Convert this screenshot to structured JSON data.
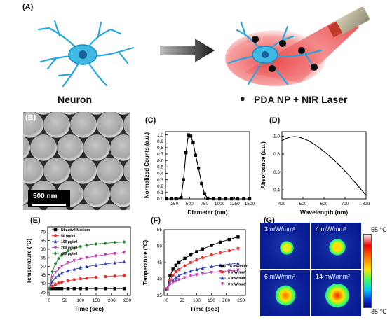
{
  "panels": {
    "A": {
      "label": "(A)",
      "left_caption": "Neuron",
      "right_caption": "PDA NP + NIR Laser",
      "legend_dot": "●"
    },
    "B": {
      "label": "(B)",
      "scale_bar": "500 nm"
    },
    "C": {
      "label": "(C)"
    },
    "D": {
      "label": "(D)"
    },
    "E": {
      "label": "(E)"
    },
    "F": {
      "label": "(F)"
    },
    "G": {
      "label": "(G)",
      "cells": [
        "3 mW/mm²",
        "4 mW/mm²",
        "6 mW/mm²",
        "14 mW/mm²"
      ],
      "colorbar_max": "55 °C",
      "colorbar_min": "35 °C",
      "hot_levels": [
        0.35,
        0.5,
        0.72,
        0.92
      ]
    }
  },
  "chart_data": [
    {
      "id": "C",
      "type": "line",
      "xlabel": "Diameter (nm)",
      "ylabel": "Normalized Counts (a.u.)",
      "xlim": [
        100,
        1500
      ],
      "ylim": [
        0,
        1.05
      ],
      "xticks": [
        "250",
        "500",
        "750",
        "1000",
        "1250",
        "1500"
      ],
      "yticks": [
        "0.0",
        "0.1",
        "0.2",
        "0.3",
        "0.4",
        "0.5",
        "0.6",
        "0.7",
        "0.8",
        "0.9",
        "1.0"
      ],
      "x": [
        120,
        200,
        280,
        360,
        400,
        440,
        480,
        520,
        560,
        600,
        650,
        700,
        750,
        800,
        900,
        1000,
        1100,
        1200,
        1300,
        1400,
        1500
      ],
      "y": [
        0,
        0,
        0,
        0.02,
        0.3,
        0.72,
        1.0,
        0.98,
        0.88,
        0.68,
        0.48,
        0.24,
        0.08,
        0.01,
        0,
        0,
        0,
        0,
        0,
        0,
        0
      ]
    },
    {
      "id": "D",
      "type": "line",
      "xlabel": "Wavelength (nm)",
      "ylabel": "Absorbance (a.u.)",
      "xlim": [
        400,
        800
      ],
      "ylim": [
        0.3,
        1.05
      ],
      "xticks": [
        "400",
        "500",
        "600",
        "700",
        "800"
      ],
      "yticks": [
        "0.4",
        "0.6",
        "0.8",
        "1.0"
      ],
      "x": [
        400,
        420,
        440,
        460,
        480,
        500,
        520,
        540,
        560,
        580,
        600,
        620,
        640,
        660,
        680,
        700,
        720,
        740,
        760,
        780,
        800
      ],
      "y": [
        0.95,
        0.975,
        0.99,
        0.995,
        0.99,
        0.975,
        0.955,
        0.93,
        0.9,
        0.865,
        0.83,
        0.79,
        0.75,
        0.705,
        0.66,
        0.61,
        0.56,
        0.505,
        0.45,
        0.395,
        0.34
      ]
    },
    {
      "id": "E",
      "type": "line",
      "xlabel": "Time (sec)",
      "ylabel": "Temperature (°C)",
      "xlim": [
        -5,
        260
      ],
      "ylim": [
        33,
        73
      ],
      "xticks": [
        "0",
        "50",
        "100",
        "150",
        "200",
        "250"
      ],
      "yticks": [
        "35",
        "40",
        "45",
        "50",
        "55",
        "60",
        "65",
        "70"
      ],
      "x": [
        0,
        10,
        20,
        30,
        40,
        60,
        80,
        100,
        120,
        150,
        180,
        210,
        240
      ],
      "series": [
        {
          "name": "Nbactiv4 Medium",
          "color": "#000000",
          "marker": "square",
          "values": [
            37,
            37,
            37,
            37,
            37,
            37,
            37,
            37,
            37,
            37,
            37,
            37,
            37
          ]
        },
        {
          "name": "50 μg/ml",
          "color": "#e8302c",
          "marker": "circle",
          "values": [
            37,
            38.5,
            39.5,
            40.2,
            40.8,
            41.6,
            42.2,
            42.7,
            43.1,
            43.6,
            44,
            44.3,
            44.6
          ]
        },
        {
          "name": "100 μg/ml",
          "color": "#2b3fb5",
          "marker": "triangle",
          "values": [
            37,
            41,
            43.5,
            45,
            46,
            47.3,
            48.3,
            49.1,
            49.8,
            50.7,
            51.4,
            52,
            52.6
          ]
        },
        {
          "name": "200 μg/ml",
          "color": "#c03ab4",
          "marker": "triangle-down",
          "values": [
            37,
            43.5,
            46.5,
            48.5,
            50,
            52,
            53.3,
            54.3,
            55.1,
            56,
            56.8,
            57.4,
            58
          ]
        },
        {
          "name": "400 μg/ml",
          "color": "#1e8a2e",
          "marker": "diamond",
          "values": [
            37,
            47,
            51.5,
            54.5,
            56.5,
            59,
            60.5,
            61.5,
            62.2,
            63,
            63.5,
            63.9,
            64.2
          ]
        }
      ]
    },
    {
      "id": "F",
      "type": "line",
      "xlabel": "Time (sec)",
      "ylabel": "Temperature (°C)",
      "xlim": [
        -10,
        265
      ],
      "ylim": [
        35,
        55
      ],
      "xticks": [
        "0",
        "50",
        "100",
        "150",
        "200",
        "250"
      ],
      "yticks": [
        "35",
        "40",
        "45",
        "50",
        "55"
      ],
      "x": [
        0,
        10,
        20,
        30,
        40,
        60,
        80,
        100,
        120,
        150,
        180,
        210,
        240
      ],
      "series": [
        {
          "name": "14 mW/mm²",
          "color": "#000000",
          "marker": "square",
          "values": [
            37,
            41,
            43,
            44.2,
            45,
            46.3,
            47.3,
            48.3,
            49.1,
            50.2,
            51.2,
            52,
            52.8
          ]
        },
        {
          "name": "6 mW/mm²",
          "color": "#e8302c",
          "marker": "circle",
          "values": [
            37,
            39.7,
            41.2,
            42.2,
            42.9,
            44,
            45,
            45.8,
            46.5,
            47.3,
            48,
            48.6,
            49.3
          ]
        },
        {
          "name": "4 mW/mm²",
          "color": "#2b3fb5",
          "marker": "triangle",
          "values": [
            37,
            38.8,
            39.8,
            40.5,
            41,
            41.8,
            42.4,
            42.9,
            43.3,
            43.8,
            44.2,
            44.5,
            44.8
          ]
        },
        {
          "name": "3 mW/mm²",
          "color": "#c03ab4",
          "marker": "triangle-down",
          "values": [
            37,
            38.2,
            38.9,
            39.4,
            39.8,
            40.4,
            40.9,
            41.3,
            41.6,
            42,
            42.3,
            42.5,
            42.7
          ]
        }
      ]
    }
  ]
}
